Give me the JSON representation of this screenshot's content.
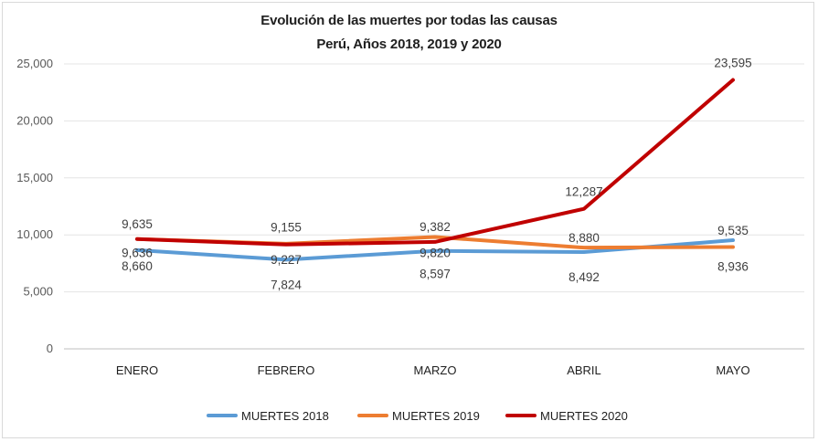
{
  "chart_data": {
    "type": "line",
    "title": "Evolución de las muertes por todas las causas",
    "subtitle": "Perú, Años 2018, 2019 y 2020",
    "categories": [
      "ENERO",
      "FEBRERO",
      "MARZO",
      "ABRIL",
      "MAYO"
    ],
    "ylim": [
      0,
      25000
    ],
    "yticks": [
      0,
      5000,
      10000,
      15000,
      20000,
      25000
    ],
    "ytick_labels": [
      "0",
      "5,000",
      "10,000",
      "15,000",
      "20,000",
      "25,000"
    ],
    "grid": true,
    "legend_position": "bottom",
    "series": [
      {
        "name": "MUERTES 2018",
        "color": "#5b9bd5",
        "values": [
          8660,
          7824,
          8597,
          8492,
          9535
        ],
        "labels": [
          "8,660",
          "7,824",
          "8,597",
          "8,492",
          "9,535"
        ]
      },
      {
        "name": "MUERTES  2019",
        "color": "#ed7d31",
        "values": [
          9636,
          9227,
          9820,
          8880,
          8936
        ],
        "labels": [
          "9,636",
          "9,227",
          "9,820",
          "8,880",
          "8,936"
        ]
      },
      {
        "name": "MUERTES 2020",
        "color": "#c00000",
        "values": [
          9635,
          9155,
          9382,
          12287,
          23595
        ],
        "labels": [
          "9,635",
          "9,155",
          "9,382",
          "12,287",
          "23,595"
        ]
      }
    ]
  }
}
